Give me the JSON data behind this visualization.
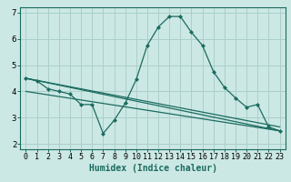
{
  "title": "",
  "xlabel": "Humidex (Indice chaleur)",
  "ylabel": "",
  "background_color": "#cce8e4",
  "grid_color": "#aacfcb",
  "line_color": "#1a6b60",
  "xlim": [
    -0.5,
    23.5
  ],
  "ylim": [
    1.8,
    7.2
  ],
  "xticks": [
    0,
    1,
    2,
    3,
    4,
    5,
    6,
    7,
    8,
    9,
    10,
    11,
    12,
    13,
    14,
    15,
    16,
    17,
    18,
    19,
    20,
    21,
    22,
    23
  ],
  "yticks": [
    2,
    3,
    4,
    5,
    6,
    7
  ],
  "ytick_labels": [
    "2",
    "3",
    "4",
    "5",
    "6",
    "7"
  ],
  "series": [
    {
      "x": [
        0,
        1,
        2,
        3,
        4,
        5,
        6,
        7,
        8,
        9,
        10,
        11,
        12,
        13,
        14,
        15,
        16,
        17,
        18,
        19,
        20,
        21,
        22,
        23
      ],
      "y": [
        4.5,
        4.4,
        4.1,
        4.0,
        3.9,
        3.5,
        3.5,
        2.4,
        2.9,
        3.55,
        4.45,
        5.75,
        6.45,
        6.85,
        6.85,
        6.25,
        5.75,
        4.75,
        4.15,
        3.75,
        3.4,
        3.5,
        2.65,
        2.5
      ],
      "marker": true
    },
    {
      "x": [
        0,
        23
      ],
      "y": [
        4.5,
        2.5
      ],
      "marker": false
    },
    {
      "x": [
        0,
        23
      ],
      "y": [
        4.5,
        2.65
      ],
      "marker": false
    },
    {
      "x": [
        0,
        23
      ],
      "y": [
        4.0,
        2.5
      ],
      "marker": false
    }
  ],
  "font_size_xlabel": 7,
  "font_size_tick": 6,
  "marker": "D",
  "marker_size": 2.0,
  "line_width": 0.9
}
